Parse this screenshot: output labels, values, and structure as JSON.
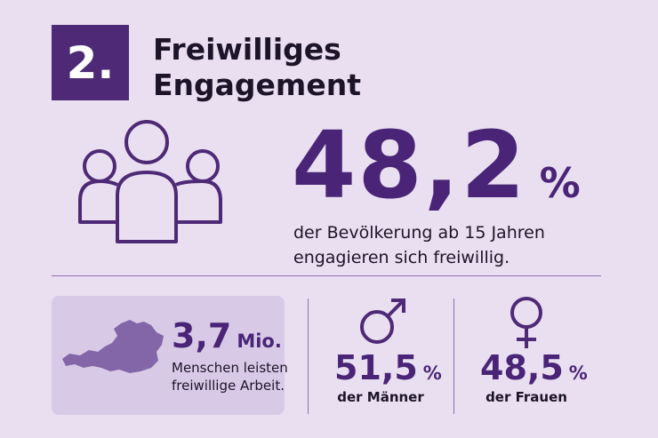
{
  "badge": "2.",
  "title": {
    "lines": [
      "Freiwilliges",
      "Engagement"
    ]
  },
  "main_stat": {
    "value": "48,2",
    "unit": "%",
    "description": [
      "der Bevölkerung ab 15 Jahren",
      "engagieren sich freiwillig."
    ]
  },
  "cards": [
    {
      "value": "3,7",
      "unit": "Mio.",
      "description": [
        "Menschen leisten",
        "freiwillige Arbeit."
      ]
    },
    {
      "value": "51,5",
      "unit": "%",
      "description": [
        "der Männer"
      ]
    },
    {
      "value": "48,5",
      "unit": "%",
      "description": [
        "der Frauen"
      ]
    }
  ]
}
